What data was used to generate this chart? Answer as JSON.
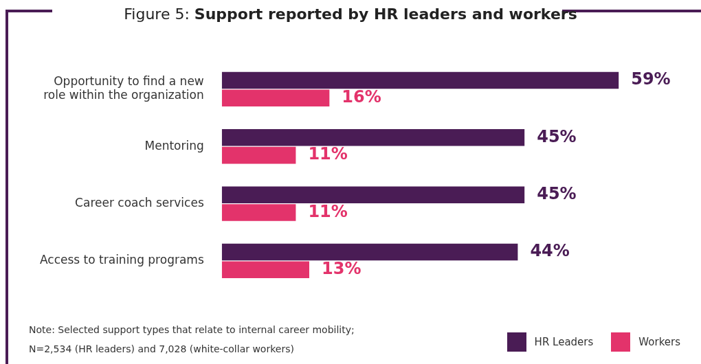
{
  "chart_data": {
    "type": "bar",
    "orientation": "horizontal",
    "title": "Figure 5: Support reported by HR leaders and workers",
    "categories": [
      "Opportunity to find a new role within the organization",
      "Mentoring",
      "Career coach services",
      "Access to training programs"
    ],
    "series": [
      {
        "name": "HR Leaders",
        "color": "#4a1c55",
        "values": [
          59,
          45,
          45,
          44
        ],
        "value_labels": [
          "59%",
          "45%",
          "45%",
          "44%"
        ]
      },
      {
        "name": "Workers",
        "color": "#e3336b",
        "values": [
          16,
          11,
          11,
          13
        ],
        "value_labels": [
          "16%",
          "11%",
          "11%",
          "13%"
        ]
      }
    ],
    "legend": "bottom right",
    "annotations": [
      "Note: Selected support types that relate to internal career mobility;",
      "N=2,534 (HR leaders) and 7,028 (white-collar workers)"
    ]
  }
}
